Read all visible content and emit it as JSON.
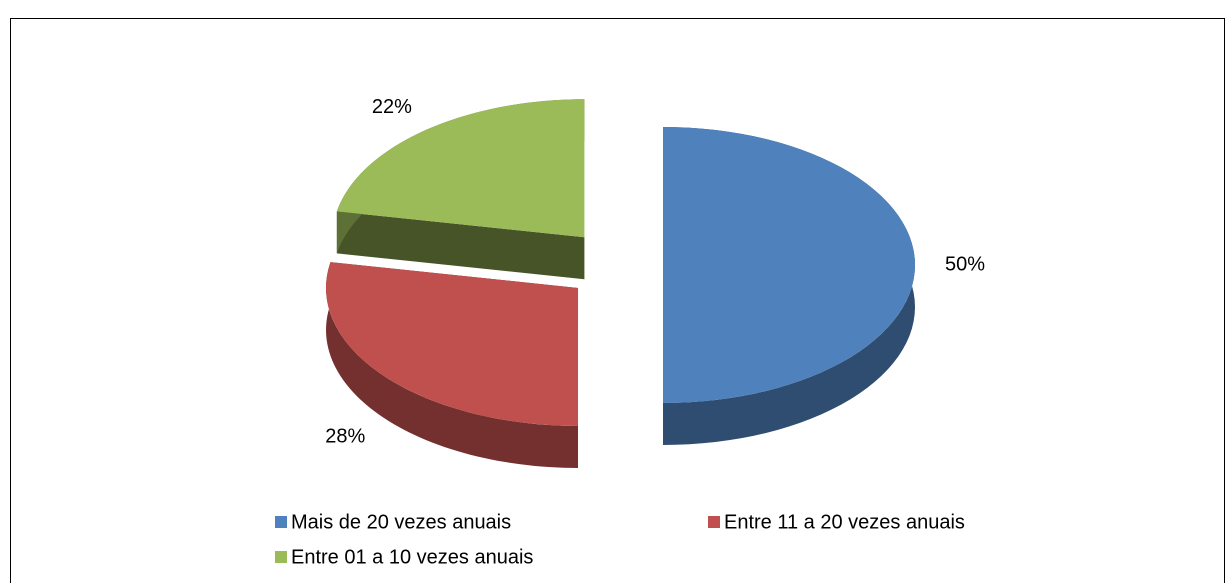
{
  "chart_data": {
    "type": "pie3d",
    "categories": [
      "Mais de 20 vezes anuais",
      "Entre 11 a 20 vezes anuais",
      "Entre 01 a 10 vezes anuais"
    ],
    "values": [
      50,
      28,
      22
    ],
    "value_labels": [
      "50%",
      "28%",
      "22%"
    ],
    "colors": [
      "#4f81bd",
      "#c0504d",
      "#9bbb59"
    ],
    "legend": "bottom"
  }
}
